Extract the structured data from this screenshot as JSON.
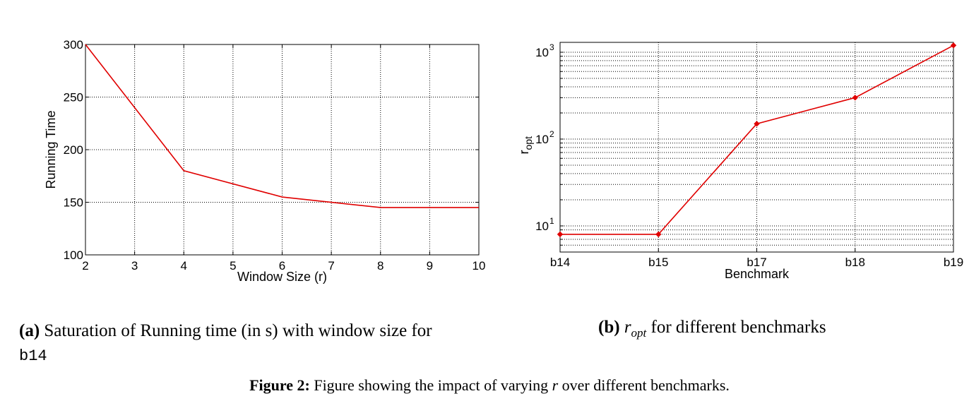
{
  "chart_data": [
    {
      "type": "line",
      "panel": "a",
      "x": [
        2,
        4,
        6,
        8,
        10
      ],
      "y": [
        300,
        180,
        155,
        145,
        145
      ],
      "xlim": [
        2,
        10
      ],
      "ylim": [
        100,
        300
      ],
      "xticks": [
        "2",
        "3",
        "4",
        "5",
        "6",
        "7",
        "8",
        "9",
        "10"
      ],
      "yticks": [
        "100",
        "150",
        "200",
        "250",
        "300"
      ],
      "xlabel": "Window Size (r)",
      "ylabel": "Running Time",
      "grid": true,
      "color": "#e00000"
    },
    {
      "type": "line",
      "panel": "b",
      "yscale": "log",
      "categories": [
        "b14",
        "b15",
        "b17",
        "b18",
        "b19"
      ],
      "values": [
        8,
        8,
        150,
        300,
        1200
      ],
      "ylim": [
        5,
        1300
      ],
      "yticks": [
        {
          "base": "10",
          "exp": "1"
        },
        {
          "base": "10",
          "exp": "2"
        },
        {
          "base": "10",
          "exp": "3"
        }
      ],
      "xlabel": "Benchmark",
      "ylabel": "r",
      "ylabel_sub": "opt",
      "grid": true,
      "color": "#e00000"
    }
  ],
  "captions": {
    "a": {
      "label": "(a)",
      "text": "Saturation of Running time (in s) with window size for",
      "code": "b14"
    },
    "b": {
      "label": "(b)",
      "math": "r",
      "math_sub": "opt",
      "text": "for different benchmarks"
    },
    "figure": {
      "label": "Figure 2:",
      "text_before": "Figure showing the impact of varying",
      "math": "r",
      "text_after": "over different benchmarks."
    }
  }
}
